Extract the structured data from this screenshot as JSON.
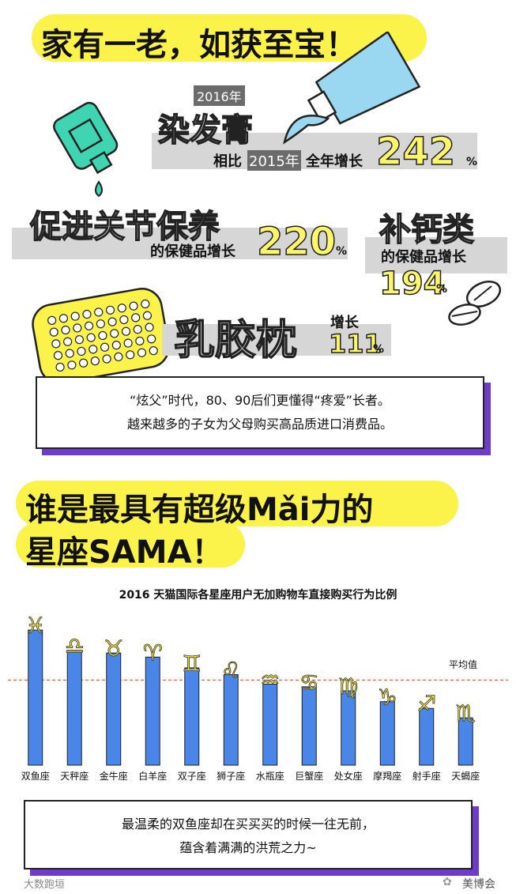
{
  "section1": {
    "title": "家有一老，如获至宝！",
    "year_tag": "2016年",
    "hair_dye": {
      "name": "染发膏",
      "compare_prefix": "相比",
      "compare_year": "2015年",
      "compare_suffix": "全年增长",
      "value": "242",
      "unit": "%"
    },
    "joint": {
      "name": "促进关节保养",
      "desc": "的保健品增长",
      "value": "220",
      "unit": "%"
    },
    "calcium": {
      "name": "补钙类",
      "desc": "的保健品增长",
      "value": "194",
      "unit": "%"
    },
    "pillow": {
      "name": "乳胶枕",
      "desc": "增长",
      "value": "111",
      "unit": "%"
    },
    "note_line1": "“炫父”时代，80、90后们更懂得“疼爱”长者。",
    "note_line2": "越来越多的子女为父母购买高品质进口消费品。"
  },
  "section2": {
    "title_line1": "谁是最具有超级Mǎi力的",
    "title_line2": "星座SAMA！",
    "note_line1": "最温柔的双鱼座却在买买买的时候一往无前，",
    "note_line2": "蕴含着满满的洪荒之力~"
  },
  "chart_data": {
    "type": "bar",
    "title": "2016 天猫国际各星座用户无加购物车直接购买行为比例",
    "categories": [
      "双鱼座",
      "天秤座",
      "金牛座",
      "白羊座",
      "双子座",
      "狮子座",
      "水瓶座",
      "巨蟹座",
      "处女座",
      "摩羯座",
      "射手座",
      "天蝎座"
    ],
    "symbols": [
      "♓",
      "♎",
      "♉",
      "♈",
      "♊",
      "♌",
      "♒",
      "♋",
      "♍",
      "♑",
      "♐",
      "♏"
    ],
    "values": [
      100,
      85,
      83,
      80,
      72,
      67,
      60,
      58,
      55,
      47,
      42,
      35
    ],
    "average_label": "平均值",
    "average": 63,
    "ylim": [
      0,
      110
    ],
    "bar_color": "#4a86e8",
    "average_color": "#e4572e"
  },
  "footer": {
    "watermark_left": "大数跑垣",
    "watermark_right": "美博会"
  }
}
